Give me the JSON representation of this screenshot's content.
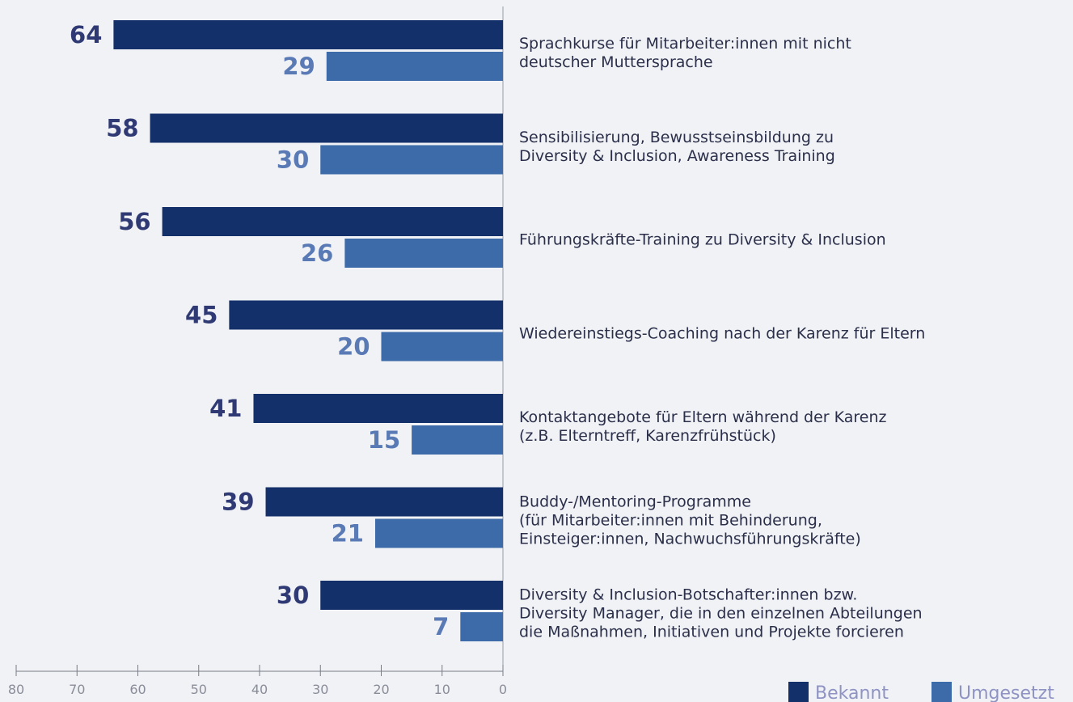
{
  "chart_data": {
    "type": "hbar",
    "categories": [
      "Sprachkurse für Mitarbeiter:innen mit nicht\ndeutscher Muttersprache",
      "Sensibilisierung, Bewusstseinsbildung zu\nDiversity & Inclusion, Awareness Training",
      "Führungskräfte-Training zu Diversity & Inclusion",
      "Wiedereinstiegs-Coaching nach der Karenz für Eltern",
      "Kontaktangebote für Eltern während der Karenz\n(z.B. Elterntreff, Karenzfrühstück)",
      "Buddy-/Mentoring-Programme\n(für Mitarbeiter:innen mit Behinderung,\nEinsteiger:innen, Nachwuchsführungskräfte)",
      "Diversity & Inclusion-Botschafter:innen bzw.\nDiversity Manager, die in den einzelnen Abteilungen\ndie Maßnahmen, Initiativen und Projekte forcieren"
    ],
    "series": [
      {
        "name": "Bekannt",
        "color": "#14306a",
        "values": [
          64,
          58,
          56,
          45,
          41,
          39,
          30
        ]
      },
      {
        "name": "Umgesetzt",
        "color": "#3d6aa8",
        "values": [
          29,
          30,
          26,
          20,
          15,
          21,
          7
        ]
      }
    ],
    "xlim": [
      80,
      0
    ],
    "xticks": [
      80,
      70,
      60,
      50,
      40,
      30,
      20,
      10,
      0
    ],
    "legend": "bottom-right"
  }
}
